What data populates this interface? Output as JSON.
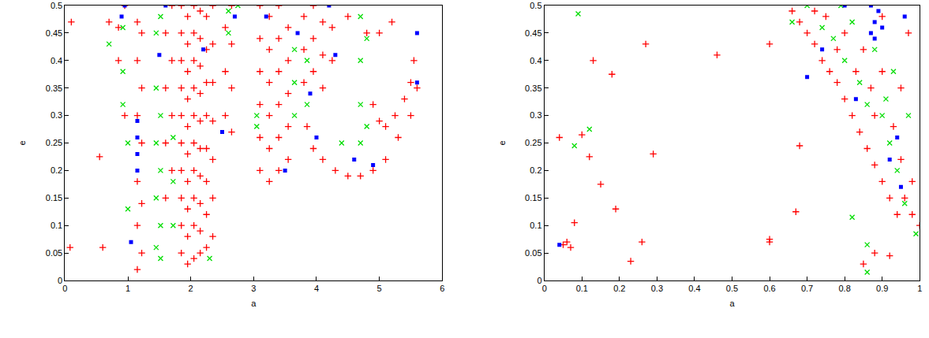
{
  "chart_data": [
    {
      "type": "scatter",
      "x_label": "a",
      "y_label": "e",
      "xlim": [
        0,
        6
      ],
      "xticks": [
        0,
        1,
        2,
        3,
        4,
        5,
        6
      ],
      "ylim": [
        0,
        0.5
      ],
      "yticks": [
        0,
        0.05,
        0.1,
        0.15,
        0.2,
        0.25,
        0.3,
        0.35,
        0.4,
        0.45,
        0.5
      ],
      "series": [
        {
          "color": "#ff0000",
          "marker": "plus",
          "x": [
            1.85,
            1.85,
            1.85,
            1.85,
            1.85,
            1.85,
            1.85,
            1.85,
            1.85,
            1.85,
            1.95,
            1.95,
            1.95,
            1.95,
            1.95,
            1.95,
            1.95,
            1.95,
            1.95,
            1.95,
            2.05,
            2.05,
            2.05,
            2.05,
            2.05,
            2.05,
            2.05,
            2.05,
            2.05,
            2.05,
            2.15,
            2.15,
            2.15,
            2.15,
            2.15,
            2.15,
            2.15,
            2.15,
            2.15,
            2.15,
            2.25,
            2.25,
            2.25,
            2.25,
            2.25,
            2.25,
            2.25,
            2.25,
            2.35,
            2.35,
            2.35,
            2.35,
            2.35,
            2.35,
            2.35,
            1.15,
            1.15,
            1.15,
            1.15,
            1.15,
            1.15,
            1.22,
            1.22,
            1.22,
            1.22,
            1.22,
            1.6,
            1.6,
            1.6,
            1.6,
            1.7,
            1.7,
            1.7,
            1.7,
            2.55,
            2.55,
            2.55,
            2.65,
            2.65,
            2.65,
            2.65,
            0.85,
            0.85,
            0.95,
            0.95,
            3.1,
            3.1,
            3.1,
            3.1,
            3.1,
            3.1,
            3.25,
            3.25,
            3.25,
            3.25,
            3.25,
            3.25,
            3.4,
            3.4,
            3.4,
            3.4,
            3.4,
            3.4,
            3.55,
            3.55,
            3.55,
            3.55,
            3.55,
            3.8,
            3.8,
            3.8,
            3.95,
            3.95,
            3.95,
            4.1,
            4.1,
            4.1,
            4.25,
            4.25,
            3.85,
            3.95,
            4.1,
            4.3,
            4.5,
            4.7,
            4.9,
            5.1,
            5.3,
            5.5,
            5.6,
            4.9,
            5.0,
            5.1,
            5.25,
            5.4,
            5.5,
            5.55,
            4.5,
            4.8,
            5.0,
            5.2,
            0.08,
            0.1,
            0.55,
            0.6,
            0.7
          ],
          "y": [
            0.05,
            0.1,
            0.15,
            0.2,
            0.25,
            0.3,
            0.35,
            0.4,
            0.45,
            0.5,
            0.03,
            0.08,
            0.13,
            0.18,
            0.23,
            0.28,
            0.33,
            0.38,
            0.43,
            0.48,
            0.04,
            0.1,
            0.15,
            0.2,
            0.25,
            0.3,
            0.35,
            0.4,
            0.45,
            0.5,
            0.05,
            0.09,
            0.14,
            0.19,
            0.24,
            0.29,
            0.34,
            0.39,
            0.44,
            0.49,
            0.06,
            0.12,
            0.18,
            0.24,
            0.3,
            0.36,
            0.42,
            0.48,
            0.08,
            0.15,
            0.22,
            0.29,
            0.36,
            0.43,
            0.5,
            0.02,
            0.1,
            0.18,
            0.3,
            0.4,
            0.47,
            0.05,
            0.14,
            0.25,
            0.35,
            0.45,
            0.15,
            0.25,
            0.35,
            0.45,
            0.2,
            0.3,
            0.4,
            0.5,
            0.3,
            0.38,
            0.46,
            0.27,
            0.35,
            0.43,
            0.5,
            0.4,
            0.46,
            0.3,
            0.5,
            0.2,
            0.26,
            0.32,
            0.38,
            0.44,
            0.5,
            0.18,
            0.24,
            0.3,
            0.36,
            0.42,
            0.48,
            0.2,
            0.26,
            0.32,
            0.38,
            0.44,
            0.5,
            0.22,
            0.28,
            0.34,
            0.4,
            0.46,
            0.36,
            0.42,
            0.48,
            0.38,
            0.44,
            0.5,
            0.35,
            0.41,
            0.47,
            0.4,
            0.46,
            0.28,
            0.24,
            0.22,
            0.2,
            0.19,
            0.19,
            0.2,
            0.22,
            0.26,
            0.3,
            0.35,
            0.32,
            0.29,
            0.28,
            0.3,
            0.33,
            0.36,
            0.4,
            0.48,
            0.45,
            0.45,
            0.47,
            0.06,
            0.47,
            0.225,
            0.06,
            0.47
          ]
        },
        {
          "color": "#00dd00",
          "marker": "x",
          "x": [
            0.92,
            0.92,
            0.92,
            1.45,
            1.45,
            1.45,
            1.45,
            1.45,
            1.52,
            1.52,
            1.52,
            1.52,
            1.52,
            1.72,
            1.72,
            1.72,
            1.0,
            1.0,
            2.6,
            2.6,
            2.3,
            3.05,
            3.05,
            3.65,
            3.65,
            3.65,
            3.85,
            3.85,
            4.7,
            4.7,
            4.7,
            4.7,
            4.8,
            4.8,
            4.4,
            2.75,
            0.7
          ],
          "y": [
            0.32,
            0.38,
            0.46,
            0.06,
            0.15,
            0.25,
            0.35,
            0.45,
            0.04,
            0.1,
            0.2,
            0.3,
            0.48,
            0.1,
            0.18,
            0.26,
            0.13,
            0.25,
            0.45,
            0.49,
            0.04,
            0.3,
            0.28,
            0.3,
            0.36,
            0.42,
            0.32,
            0.4,
            0.25,
            0.32,
            0.4,
            0.48,
            0.28,
            0.44,
            0.25,
            0.5,
            0.43
          ]
        },
        {
          "color": "#0000ff",
          "marker": "square",
          "x": [
            1.15,
            1.15,
            1.15,
            1.15,
            0.9,
            0.95,
            1.05,
            1.5,
            2.2,
            2.5,
            2.7,
            3.5,
            3.7,
            3.9,
            4.0,
            4.3,
            4.6,
            4.9,
            5.6,
            5.6,
            4.2,
            1.6,
            3.2
          ],
          "y": [
            0.2,
            0.23,
            0.26,
            0.29,
            0.48,
            0.5,
            0.07,
            0.41,
            0.42,
            0.27,
            0.48,
            0.2,
            0.45,
            0.34,
            0.26,
            0.41,
            0.22,
            0.21,
            0.45,
            0.36,
            0.5,
            0.5,
            0.48
          ]
        }
      ]
    },
    {
      "type": "scatter",
      "x_label": "a",
      "y_label": "e",
      "xlim": [
        0,
        1
      ],
      "xticks": [
        0,
        0.1,
        0.2,
        0.3,
        0.4,
        0.5,
        0.6,
        0.7,
        0.8,
        0.9,
        1
      ],
      "ylim": [
        0,
        0.5
      ],
      "yticks": [
        0,
        0.05,
        0.1,
        0.15,
        0.2,
        0.25,
        0.3,
        0.35,
        0.4,
        0.45,
        0.5
      ],
      "series": [
        {
          "color": "#ff0000",
          "marker": "plus",
          "x": [
            0.04,
            0.05,
            0.06,
            0.07,
            0.08,
            0.1,
            0.12,
            0.13,
            0.15,
            0.18,
            0.19,
            0.23,
            0.26,
            0.27,
            0.29,
            0.46,
            0.6,
            0.6,
            0.6,
            0.67,
            0.68,
            0.66,
            0.68,
            0.7,
            0.72,
            0.74,
            0.76,
            0.78,
            0.8,
            0.82,
            0.84,
            0.86,
            0.88,
            0.9,
            0.92,
            0.94,
            0.96,
            0.98,
            1.0,
            0.75,
            0.8,
            0.85,
            0.9,
            0.95,
            0.97,
            0.83,
            0.88,
            0.93,
            0.78,
            0.72,
            0.9,
            0.95,
            0.98,
            0.87,
            0.85,
            0.88,
            0.92
          ],
          "y": [
            0.26,
            0.065,
            0.07,
            0.06,
            0.105,
            0.265,
            0.225,
            0.4,
            0.175,
            0.375,
            0.13,
            0.035,
            0.07,
            0.43,
            0.23,
            0.41,
            0.07,
            0.075,
            0.43,
            0.125,
            0.245,
            0.49,
            0.47,
            0.45,
            0.43,
            0.4,
            0.38,
            0.36,
            0.33,
            0.3,
            0.27,
            0.24,
            0.21,
            0.18,
            0.15,
            0.12,
            0.15,
            0.12,
            0.1,
            0.48,
            0.45,
            0.42,
            0.38,
            0.35,
            0.45,
            0.38,
            0.3,
            0.28,
            0.42,
            0.49,
            0.48,
            0.22,
            0.18,
            0.35,
            0.03,
            0.05,
            0.045
          ]
        },
        {
          "color": "#00dd00",
          "marker": "x",
          "x": [
            0.09,
            0.08,
            0.12,
            0.82,
            0.86,
            0.86,
            0.99,
            0.66,
            0.7,
            0.74,
            0.77,
            0.8,
            0.84,
            0.86,
            0.9,
            0.92,
            0.94,
            0.96,
            0.82,
            0.88,
            0.93,
            0.97,
            0.91,
            0.79
          ],
          "y": [
            0.485,
            0.245,
            0.275,
            0.115,
            0.065,
            0.015,
            0.085,
            0.47,
            0.5,
            0.46,
            0.44,
            0.4,
            0.36,
            0.32,
            0.3,
            0.25,
            0.2,
            0.14,
            0.47,
            0.42,
            0.38,
            0.3,
            0.33,
            0.5
          ]
        },
        {
          "color": "#0000ff",
          "marker": "square",
          "x": [
            0.04,
            0.7,
            0.87,
            0.88,
            0.89,
            0.87,
            0.9,
            0.88,
            0.83,
            0.92,
            0.94,
            0.95,
            0.74,
            0.8,
            0.96
          ],
          "y": [
            0.065,
            0.37,
            0.45,
            0.47,
            0.49,
            0.5,
            0.46,
            0.44,
            0.33,
            0.22,
            0.26,
            0.17,
            0.42,
            0.5,
            0.48
          ]
        }
      ]
    }
  ]
}
